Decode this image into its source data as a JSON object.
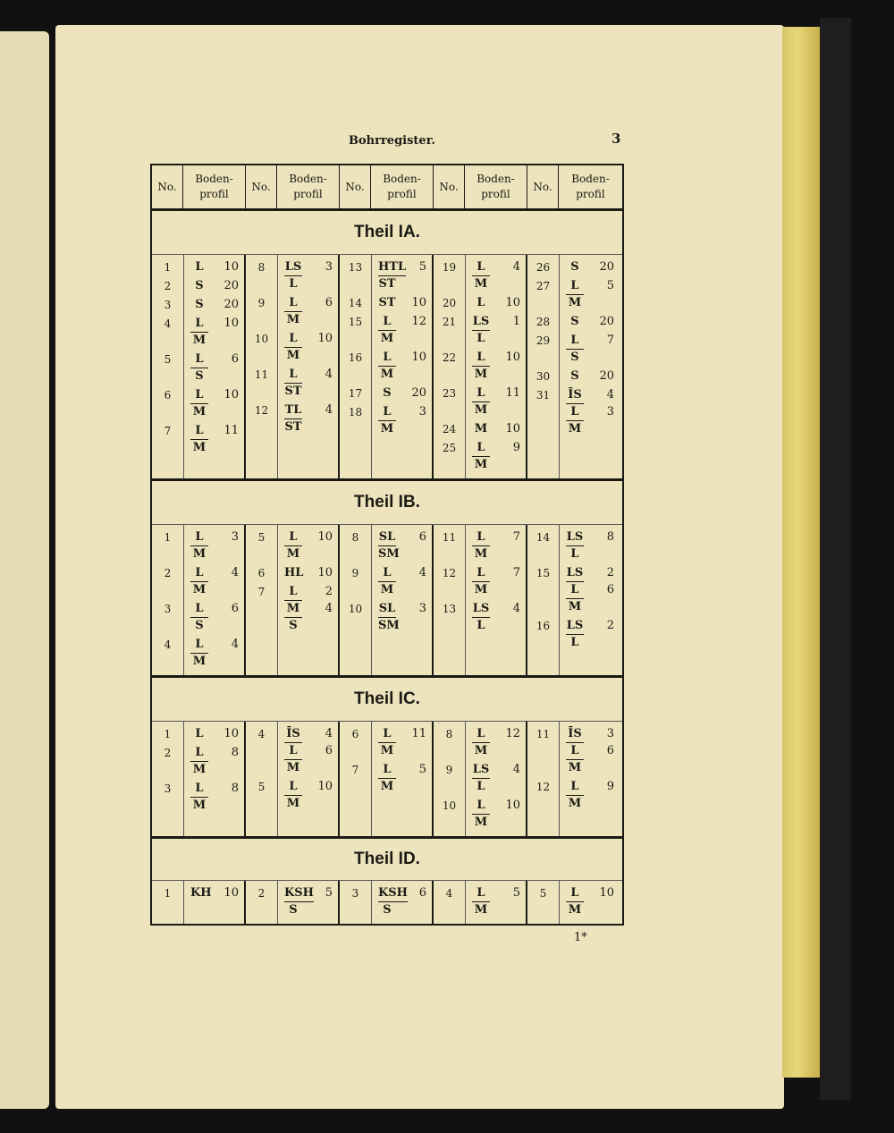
{
  "running_head": "Bohrregister.",
  "page_number": "3",
  "signature": "1*",
  "header": {
    "no": "No.",
    "profile": "Boden-\nprofil"
  },
  "sections": [
    {
      "title": "Theil IA.",
      "columns": [
        [
          {
            "no": "1",
            "lines": [
              {
                "t": "L",
                "v": "10"
              }
            ]
          },
          {
            "no": "2",
            "lines": [
              {
                "t": "S",
                "v": "20"
              }
            ]
          },
          {
            "no": "3",
            "lines": [
              {
                "t": "S",
                "v": "20"
              }
            ]
          },
          {
            "no": "4",
            "lines": [
              {
                "t": "L",
                "v": "10"
              },
              {
                "t": "M",
                "v": ""
              }
            ]
          },
          {
            "no": "5",
            "lines": [
              {
                "t": "L",
                "v": "6"
              },
              {
                "t": "S",
                "v": ""
              }
            ]
          },
          {
            "no": "6",
            "lines": [
              {
                "t": "L",
                "v": "10"
              },
              {
                "t": "M",
                "v": ""
              }
            ]
          },
          {
            "no": "7",
            "lines": [
              {
                "t": "L",
                "v": "11"
              },
              {
                "t": "M",
                "v": ""
              }
            ]
          }
        ],
        [
          {
            "no": "8",
            "lines": [
              {
                "t": "LS",
                "v": "3"
              },
              {
                "t": "L",
                "v": ""
              }
            ]
          },
          {
            "no": "9",
            "lines": [
              {
                "t": "L",
                "v": "6"
              },
              {
                "t": "M",
                "v": ""
              }
            ]
          },
          {
            "no": "10",
            "lines": [
              {
                "t": "L",
                "v": "10"
              },
              {
                "t": "M",
                "v": ""
              }
            ]
          },
          {
            "no": "11",
            "lines": [
              {
                "t": "L",
                "v": "4"
              },
              {
                "t": "ST",
                "v": ""
              }
            ]
          },
          {
            "no": "12",
            "lines": [
              {
                "t": "TL",
                "v": "4"
              },
              {
                "t": "ST",
                "v": ""
              }
            ]
          }
        ],
        [
          {
            "no": "13",
            "lines": [
              {
                "t": "HTL",
                "v": "5"
              },
              {
                "t": "ST",
                "v": ""
              }
            ]
          },
          {
            "no": "14",
            "lines": [
              {
                "t": "ST",
                "v": "10"
              }
            ]
          },
          {
            "no": "15",
            "lines": [
              {
                "t": "L",
                "v": "12"
              },
              {
                "t": "M",
                "v": ""
              }
            ]
          },
          {
            "no": "16",
            "lines": [
              {
                "t": "L",
                "v": "10"
              },
              {
                "t": "M",
                "v": ""
              }
            ]
          },
          {
            "no": "17",
            "lines": [
              {
                "t": "S",
                "v": "20"
              }
            ]
          },
          {
            "no": "18",
            "lines": [
              {
                "t": "L",
                "v": "3"
              },
              {
                "t": "M",
                "v": ""
              }
            ]
          }
        ],
        [
          {
            "no": "19",
            "lines": [
              {
                "t": "L",
                "v": "4"
              },
              {
                "t": "M",
                "v": ""
              }
            ]
          },
          {
            "no": "20",
            "lines": [
              {
                "t": "L",
                "v": "10"
              }
            ]
          },
          {
            "no": "21",
            "lines": [
              {
                "t": "LS",
                "v": "1"
              },
              {
                "t": "L",
                "v": ""
              }
            ]
          },
          {
            "no": "22",
            "lines": [
              {
                "t": "L",
                "v": "10"
              },
              {
                "t": "M",
                "v": ""
              }
            ]
          },
          {
            "no": "23",
            "lines": [
              {
                "t": "L",
                "v": "11"
              },
              {
                "t": "M",
                "v": ""
              }
            ]
          },
          {
            "no": "24",
            "lines": [
              {
                "t": "M",
                "v": "10"
              }
            ]
          },
          {
            "no": "25",
            "lines": [
              {
                "t": "L",
                "v": "9"
              },
              {
                "t": "M",
                "v": ""
              }
            ]
          }
        ],
        [
          {
            "no": "26",
            "lines": [
              {
                "t": "S",
                "v": "20"
              }
            ]
          },
          {
            "no": "27",
            "lines": [
              {
                "t": "L",
                "v": "5"
              },
              {
                "t": "M",
                "v": ""
              }
            ]
          },
          {
            "no": "28",
            "lines": [
              {
                "t": "S",
                "v": "20"
              }
            ]
          },
          {
            "no": "29",
            "lines": [
              {
                "t": "L",
                "v": "7"
              },
              {
                "t": "S",
                "v": ""
              }
            ]
          },
          {
            "no": "30",
            "lines": [
              {
                "t": "S",
                "v": "20"
              }
            ]
          },
          {
            "no": "31",
            "lines": [
              {
                "t": "ĪS",
                "v": "4"
              },
              {
                "t": "L",
                "v": "3"
              },
              {
                "t": "M",
                "v": ""
              }
            ]
          }
        ]
      ]
    },
    {
      "title": "Theil IB.",
      "columns": [
        [
          {
            "no": "1",
            "lines": [
              {
                "t": "L",
                "v": "3"
              },
              {
                "t": "M",
                "v": ""
              }
            ]
          },
          {
            "no": "2",
            "lines": [
              {
                "t": "L",
                "v": "4"
              },
              {
                "t": "M",
                "v": ""
              }
            ]
          },
          {
            "no": "3",
            "lines": [
              {
                "t": "L",
                "v": "6"
              },
              {
                "t": "S",
                "v": ""
              }
            ]
          },
          {
            "no": "4",
            "lines": [
              {
                "t": "L",
                "v": "4"
              },
              {
                "t": "M",
                "v": ""
              }
            ]
          }
        ],
        [
          {
            "no": "5",
            "lines": [
              {
                "t": "L",
                "v": "10"
              },
              {
                "t": "M",
                "v": ""
              }
            ]
          },
          {
            "no": "6",
            "lines": [
              {
                "t": "HL",
                "v": "10"
              }
            ]
          },
          {
            "no": "7",
            "lines": [
              {
                "t": "L",
                "v": "2"
              },
              {
                "t": "M",
                "v": "4"
              },
              {
                "t": "S",
                "v": ""
              }
            ]
          }
        ],
        [
          {
            "no": "8",
            "lines": [
              {
                "t": "SL",
                "v": "6"
              },
              {
                "t": "SM",
                "v": ""
              }
            ]
          },
          {
            "no": "9",
            "lines": [
              {
                "t": "L",
                "v": "4"
              },
              {
                "t": "M",
                "v": ""
              }
            ]
          },
          {
            "no": "10",
            "lines": [
              {
                "t": "SL",
                "v": "3"
              },
              {
                "t": "SM",
                "v": ""
              }
            ]
          }
        ],
        [
          {
            "no": "11",
            "lines": [
              {
                "t": "L",
                "v": "7"
              },
              {
                "t": "M",
                "v": ""
              }
            ]
          },
          {
            "no": "12",
            "lines": [
              {
                "t": "L",
                "v": "7"
              },
              {
                "t": "M",
                "v": ""
              }
            ]
          },
          {
            "no": "13",
            "lines": [
              {
                "t": "LS",
                "v": "4"
              },
              {
                "t": "L",
                "v": ""
              }
            ]
          }
        ],
        [
          {
            "no": "14",
            "lines": [
              {
                "t": "LS",
                "v": "8"
              },
              {
                "t": "L",
                "v": ""
              }
            ]
          },
          {
            "no": "15",
            "lines": [
              {
                "t": "LS",
                "v": "2"
              },
              {
                "t": "L",
                "v": "6"
              },
              {
                "t": "M",
                "v": ""
              }
            ]
          },
          {
            "no": "16",
            "lines": [
              {
                "t": "LS",
                "v": "2"
              },
              {
                "t": "L",
                "v": ""
              }
            ]
          }
        ]
      ]
    },
    {
      "title": "Theil IC.",
      "columns": [
        [
          {
            "no": "1",
            "lines": [
              {
                "t": "L",
                "v": "10"
              }
            ]
          },
          {
            "no": "2",
            "lines": [
              {
                "t": "L",
                "v": "8"
              },
              {
                "t": "M",
                "v": ""
              }
            ]
          },
          {
            "no": "3",
            "lines": [
              {
                "t": "L",
                "v": "8"
              },
              {
                "t": "M",
                "v": ""
              }
            ]
          }
        ],
        [
          {
            "no": "4",
            "lines": [
              {
                "t": "ĪS",
                "v": "4"
              },
              {
                "t": "L",
                "v": "6"
              },
              {
                "t": "M",
                "v": ""
              }
            ]
          },
          {
            "no": "5",
            "lines": [
              {
                "t": "L",
                "v": "10"
              },
              {
                "t": "M",
                "v": ""
              }
            ]
          }
        ],
        [
          {
            "no": "6",
            "lines": [
              {
                "t": "L",
                "v": "11"
              },
              {
                "t": "M",
                "v": ""
              }
            ]
          },
          {
            "no": "7",
            "lines": [
              {
                "t": "L",
                "v": "5"
              },
              {
                "t": "M",
                "v": ""
              }
            ]
          }
        ],
        [
          {
            "no": "8",
            "lines": [
              {
                "t": "L",
                "v": "12"
              },
              {
                "t": "M",
                "v": ""
              }
            ]
          },
          {
            "no": "9",
            "lines": [
              {
                "t": "LS",
                "v": "4"
              },
              {
                "t": "L",
                "v": ""
              }
            ]
          },
          {
            "no": "10",
            "lines": [
              {
                "t": "L",
                "v": "10"
              },
              {
                "t": "M",
                "v": ""
              }
            ]
          }
        ],
        [
          {
            "no": "11",
            "lines": [
              {
                "t": "ĪS",
                "v": "3"
              },
              {
                "t": "L",
                "v": "6"
              },
              {
                "t": "M",
                "v": ""
              }
            ]
          },
          {
            "no": "12",
            "lines": [
              {
                "t": "L",
                "v": "9"
              },
              {
                "t": "M",
                "v": ""
              }
            ]
          }
        ]
      ]
    },
    {
      "title": "Theil ID.",
      "columns": [
        [
          {
            "no": "1",
            "lines": [
              {
                "t": "KH",
                "v": "10"
              }
            ]
          }
        ],
        [
          {
            "no": "2",
            "lines": [
              {
                "t": "KSH",
                "v": "5"
              },
              {
                "t": "S",
                "v": ""
              }
            ]
          }
        ],
        [
          {
            "no": "3",
            "lines": [
              {
                "t": "KSH",
                "v": "6"
              },
              {
                "t": "S",
                "v": ""
              }
            ]
          }
        ],
        [
          {
            "no": "4",
            "lines": [
              {
                "t": "L",
                "v": "5"
              },
              {
                "t": "M",
                "v": ""
              }
            ]
          }
        ],
        [
          {
            "no": "5",
            "lines": [
              {
                "t": "L",
                "v": "10"
              },
              {
                "t": "M",
                "v": ""
              }
            ]
          }
        ]
      ]
    }
  ]
}
